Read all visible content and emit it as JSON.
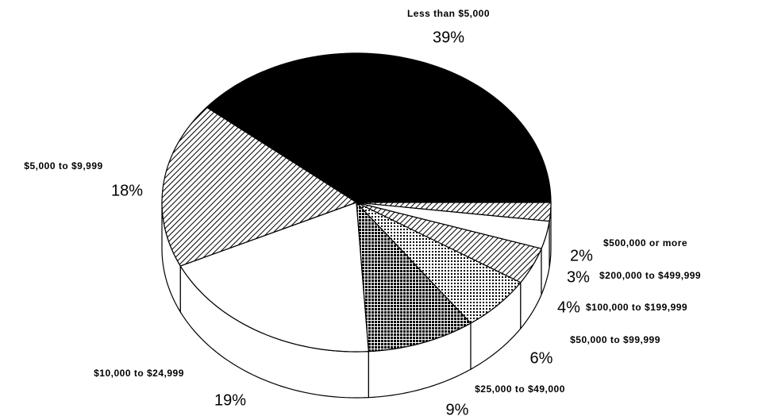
{
  "chart_data": {
    "type": "pie",
    "categories": [
      "Less than $5,000",
      "$5,000 to $9,999",
      "$10,000 to $24,999",
      "$25,000 to $49,000",
      "$50,000 to $99,999",
      "$100,000 to $199,999",
      "$200,000 to $499,999",
      "$500,000 or more"
    ],
    "values": [
      39,
      18,
      19,
      9,
      6,
      4,
      3,
      2
    ],
    "value_labels": [
      "39%",
      "18%",
      "19%",
      "9%",
      "6%",
      "4%",
      "3%",
      "2%"
    ],
    "colors": [
      "#000000",
      "#000000",
      "#ffffff",
      "#000000",
      "#000000",
      "#000000",
      "#ffffff",
      "#000000"
    ],
    "patterns": [
      "solid",
      "diagonal",
      "solid",
      "crosshatch",
      "dots",
      "diagonal",
      "solid",
      "diagonal"
    ]
  }
}
